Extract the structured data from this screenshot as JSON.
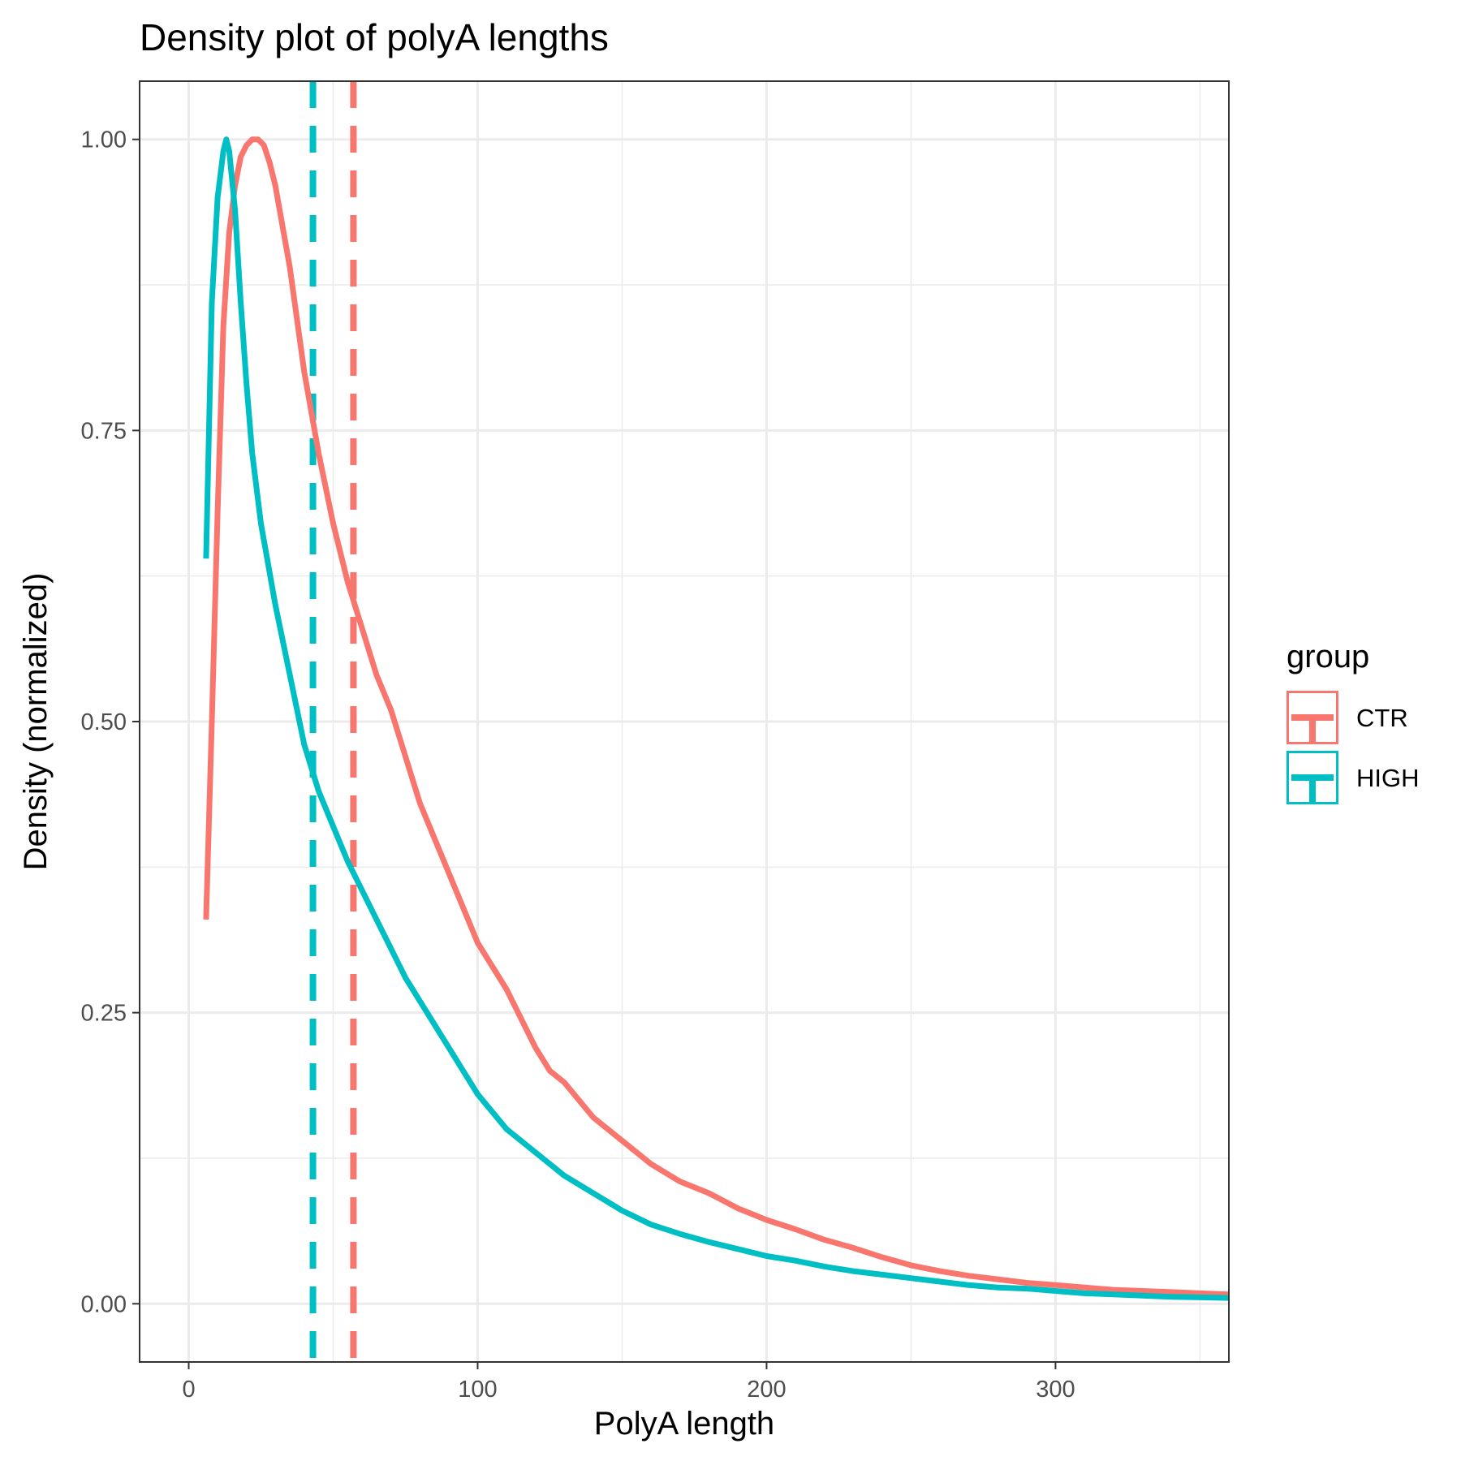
{
  "chart_data": {
    "type": "line",
    "title": "Density plot of polyA lengths",
    "xlabel": "PolyA length",
    "ylabel": "Density (normalized)",
    "xlim": [
      -17,
      360
    ],
    "ylim": [
      -0.05,
      1.05
    ],
    "x_ticks": [
      0,
      100,
      200,
      300
    ],
    "x_tick_labels": [
      "0",
      "100",
      "200",
      "300"
    ],
    "y_ticks": [
      0,
      0.25,
      0.5,
      0.75,
      1.0
    ],
    "y_tick_labels": [
      "0.00",
      "0.25",
      "0.50",
      "0.75",
      "1.00"
    ],
    "grid": true,
    "legend": {
      "title": "group",
      "position": "right"
    },
    "series": [
      {
        "name": "CTR",
        "color": "#F8766D",
        "mean_line": 57,
        "x": [
          6,
          8,
          10,
          12,
          14,
          16,
          18,
          20,
          22,
          24,
          26,
          28,
          30,
          35,
          40,
          45,
          50,
          55,
          60,
          65,
          70,
          75,
          80,
          85,
          90,
          95,
          100,
          110,
          120,
          125,
          130,
          140,
          150,
          160,
          170,
          180,
          190,
          200,
          210,
          220,
          230,
          240,
          250,
          260,
          270,
          280,
          290,
          300,
          310,
          320,
          330,
          340,
          350,
          360
        ],
        "y": [
          0.33,
          0.5,
          0.68,
          0.84,
          0.92,
          0.96,
          0.985,
          0.995,
          1.0,
          1.0,
          0.995,
          0.98,
          0.96,
          0.89,
          0.8,
          0.73,
          0.67,
          0.62,
          0.58,
          0.54,
          0.51,
          0.47,
          0.43,
          0.4,
          0.37,
          0.34,
          0.31,
          0.27,
          0.22,
          0.2,
          0.19,
          0.16,
          0.14,
          0.12,
          0.105,
          0.095,
          0.082,
          0.072,
          0.064,
          0.055,
          0.048,
          0.04,
          0.033,
          0.028,
          0.024,
          0.021,
          0.018,
          0.016,
          0.014,
          0.012,
          0.011,
          0.01,
          0.009,
          0.008
        ]
      },
      {
        "name": "HIGH",
        "color": "#00BFC4",
        "mean_line": 43,
        "x": [
          6,
          8,
          10,
          12,
          13,
          14,
          16,
          18,
          20,
          22,
          25,
          30,
          35,
          40,
          45,
          50,
          55,
          60,
          65,
          70,
          75,
          80,
          85,
          90,
          100,
          110,
          120,
          130,
          140,
          150,
          160,
          170,
          180,
          190,
          200,
          210,
          220,
          230,
          240,
          250,
          260,
          270,
          280,
          290,
          300,
          310,
          320,
          330,
          340,
          350,
          360
        ],
        "y": [
          0.64,
          0.86,
          0.95,
          0.99,
          1.0,
          0.99,
          0.94,
          0.86,
          0.79,
          0.73,
          0.67,
          0.6,
          0.54,
          0.48,
          0.44,
          0.41,
          0.38,
          0.355,
          0.33,
          0.305,
          0.28,
          0.26,
          0.24,
          0.22,
          0.18,
          0.15,
          0.13,
          0.11,
          0.095,
          0.08,
          0.068,
          0.06,
          0.053,
          0.047,
          0.041,
          0.037,
          0.032,
          0.028,
          0.025,
          0.022,
          0.019,
          0.016,
          0.014,
          0.013,
          0.011,
          0.009,
          0.008,
          0.007,
          0.006,
          0.0055,
          0.005
        ]
      }
    ]
  }
}
